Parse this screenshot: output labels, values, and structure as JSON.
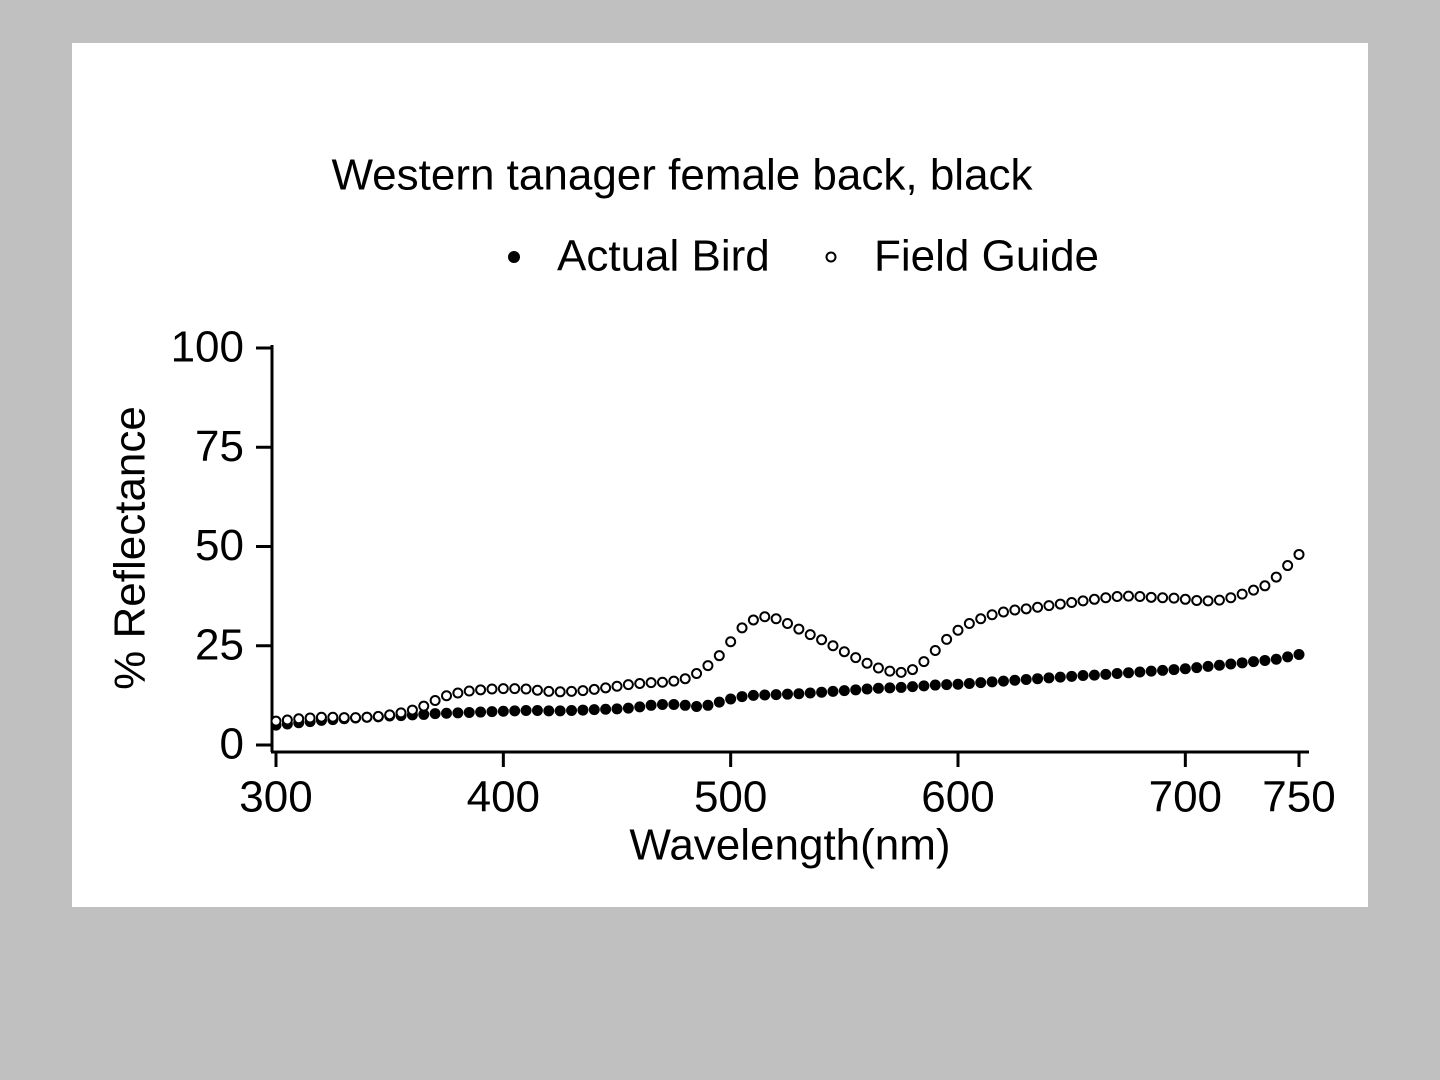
{
  "chart_data": {
    "type": "scatter",
    "title": "Western tanager female back, black",
    "x_label": "Wavelength(nm)",
    "y_label": "% Reflectance",
    "x": [
      300,
      305,
      310,
      315,
      320,
      325,
      330,
      335,
      340,
      345,
      350,
      355,
      360,
      365,
      370,
      375,
      380,
      385,
      390,
      395,
      400,
      405,
      410,
      415,
      420,
      425,
      430,
      435,
      440,
      445,
      450,
      455,
      460,
      465,
      470,
      475,
      480,
      485,
      490,
      495,
      500,
      505,
      510,
      515,
      520,
      525,
      530,
      535,
      540,
      545,
      550,
      555,
      560,
      565,
      570,
      575,
      580,
      585,
      590,
      595,
      600,
      605,
      610,
      615,
      620,
      625,
      630,
      635,
      640,
      645,
      650,
      655,
      660,
      665,
      670,
      675,
      680,
      685,
      690,
      695,
      700,
      705,
      710,
      715,
      720,
      725,
      730,
      735,
      740,
      745,
      750
    ],
    "series": [
      {
        "name": "Actual Bird",
        "color": "#000000",
        "marker": "filled",
        "values": [
          5,
          5.3,
          5.6,
          5.9,
          6.2,
          6.4,
          6.6,
          6.8,
          7,
          7.1,
          7.3,
          7.4,
          7.6,
          7.7,
          7.9,
          8,
          8.1,
          8.2,
          8.3,
          8.4,
          8.5,
          8.6,
          8.7,
          8.7,
          8.6,
          8.6,
          8.7,
          8.8,
          8.9,
          9,
          9.1,
          9.3,
          9.6,
          10,
          10.2,
          10.2,
          10,
          9.7,
          10,
          10.8,
          11.6,
          12.2,
          12.5,
          12.6,
          12.7,
          12.8,
          12.9,
          13.1,
          13.3,
          13.5,
          13.7,
          13.9,
          14.1,
          14.3,
          14.4,
          14.5,
          14.7,
          14.9,
          15.1,
          15.2,
          15.3,
          15.5,
          15.7,
          15.9,
          16.1,
          16.3,
          16.5,
          16.7,
          16.9,
          17.1,
          17.3,
          17.5,
          17.6,
          17.8,
          18,
          18.2,
          18.4,
          18.6,
          18.8,
          19,
          19.2,
          19.5,
          19.8,
          20.1,
          20.4,
          20.7,
          21,
          21.3,
          21.6,
          22.2,
          22.8
        ]
      },
      {
        "name": "Field Guide",
        "color": "#000000",
        "marker": "open",
        "values": [
          6,
          6.3,
          6.6,
          6.8,
          7,
          7,
          6.9,
          6.9,
          7,
          7.2,
          7.6,
          8.1,
          8.8,
          9.8,
          11.2,
          12.4,
          13.1,
          13.6,
          13.9,
          14.1,
          14.2,
          14.2,
          14.1,
          13.8,
          13.5,
          13.4,
          13.5,
          13.7,
          14,
          14.4,
          14.8,
          15.2,
          15.5,
          15.7,
          15.8,
          16.1,
          16.7,
          18,
          20,
          22.5,
          26,
          29.5,
          31.5,
          32.3,
          31.8,
          30.6,
          29.2,
          27.8,
          26.5,
          25,
          23.5,
          22,
          20.6,
          19.4,
          18.6,
          18.3,
          19,
          21,
          23.8,
          26.6,
          28.9,
          30.6,
          31.8,
          32.8,
          33.5,
          34,
          34.3,
          34.7,
          35.1,
          35.5,
          35.9,
          36.3,
          36.7,
          37.1,
          37.4,
          37.5,
          37.4,
          37.2,
          37.1,
          37,
          36.7,
          36.4,
          36.3,
          36.5,
          37.1,
          38,
          39,
          40.1,
          42.3,
          45.2,
          48
        ]
      }
    ],
    "xlim": [
      300,
      750
    ],
    "xticks": [
      300,
      400,
      500,
      600,
      700,
      750
    ],
    "ylim": [
      0,
      100
    ],
    "yticks": [
      0,
      25,
      50,
      75,
      100
    ],
    "grid": false,
    "legend": "top"
  }
}
